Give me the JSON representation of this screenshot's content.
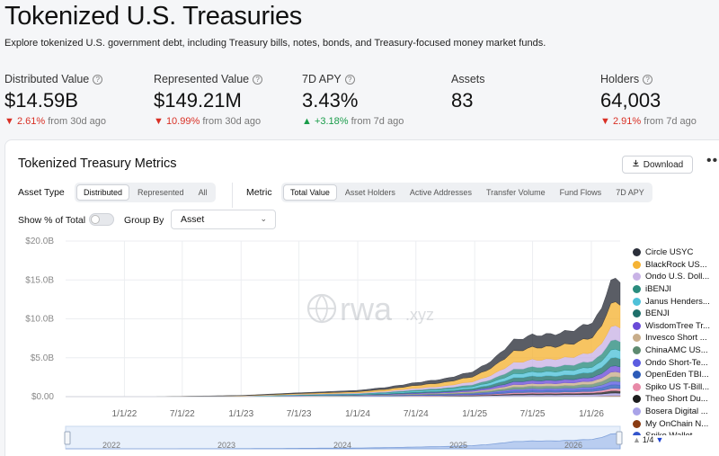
{
  "header": {
    "title": "Tokenized U.S. Treasuries",
    "subtitle": "Explore tokenized U.S. government debt, including Treasury bills, notes, bonds, and Treasury-focused money market funds."
  },
  "stats": [
    {
      "label": "Distributed Value",
      "value": "$14.59B",
      "change": "2.61%",
      "dir": "down",
      "since": "from 30d ago",
      "help": true
    },
    {
      "label": "Represented Value",
      "value": "$149.21M",
      "change": "10.99%",
      "dir": "down",
      "since": "from 30d ago",
      "help": true
    },
    {
      "label": "7D APY",
      "value": "3.43%",
      "change": "+3.18%",
      "dir": "up",
      "since": "from 7d ago",
      "help": true
    },
    {
      "label": "Assets",
      "value": "83",
      "change": "",
      "dir": "",
      "since": "",
      "help": false
    },
    {
      "label": "Holders",
      "value": "64,003",
      "change": "2.91%",
      "dir": "down",
      "since": "from 7d ago",
      "help": true
    }
  ],
  "card": {
    "title": "Tokenized Treasury Metrics",
    "download_label": "Download",
    "more_label": "•••",
    "asset_type_label": "Asset Type",
    "asset_type_options": [
      "Distributed",
      "Represented",
      "All"
    ],
    "asset_type_selected": "Distributed",
    "metric_label": "Metric",
    "metric_options": [
      "Total Value",
      "Asset Holders",
      "Active Addresses",
      "Transfer Volume",
      "Fund Flows",
      "7D APY"
    ],
    "metric_selected": "Total Value",
    "show_pct_label": "Show % of Total",
    "show_pct_on": false,
    "group_by_label": "Group By",
    "group_by_value": "Asset",
    "watermark": "rwa",
    "watermark_suffix": ".xyz"
  },
  "legend": {
    "items": [
      {
        "name": "Circle USYC",
        "color": "#2b2f3a"
      },
      {
        "name": "BlackRock US...",
        "color": "#f5b335"
      },
      {
        "name": "Ondo U.S. Doll...",
        "color": "#c9b3e6"
      },
      {
        "name": "iBENJI",
        "color": "#2a8c7e"
      },
      {
        "name": "Janus Henders...",
        "color": "#4fc1d9"
      },
      {
        "name": "BENJI",
        "color": "#1e6f6a"
      },
      {
        "name": "WisdomTree Tr...",
        "color": "#6a4bd8"
      },
      {
        "name": "Invesco Short ...",
        "color": "#c8ad8a"
      },
      {
        "name": "ChinaAMC US...",
        "color": "#5d8a70"
      },
      {
        "name": "Ondo Short-Te...",
        "color": "#5b5ce0"
      },
      {
        "name": "OpenEden TBI...",
        "color": "#2c5bb8"
      },
      {
        "name": "Spiko US T-Bill...",
        "color": "#e88aa8"
      },
      {
        "name": "Theo Short Du...",
        "color": "#1c1c1c"
      },
      {
        "name": "Bosera Digital ...",
        "color": "#a9a3e8"
      },
      {
        "name": "My OnChain N...",
        "color": "#8a3b12"
      },
      {
        "name": "Spiko Wallet...",
        "color": "#3355cc"
      }
    ],
    "page": "1/4"
  },
  "chart_data": {
    "type": "area",
    "stacked": true,
    "yticks": [
      "$20.0B",
      "$15.0B",
      "$10.0B",
      "$5.0B",
      "$0.00"
    ],
    "ylim": [
      0,
      20
    ],
    "yunit": "$B",
    "xticks": [
      "1/1/22",
      "7/1/22",
      "1/1/23",
      "7/1/23",
      "1/1/24",
      "7/1/24",
      "1/1/25",
      "7/1/25",
      "1/1/26"
    ],
    "x": [
      "2021-07-01",
      "2022-01-01",
      "2022-07-01",
      "2023-01-01",
      "2023-07-01",
      "2024-01-01",
      "2024-04-01",
      "2024-07-01",
      "2024-10-01",
      "2025-01-01",
      "2025-03-01",
      "2025-05-01",
      "2025-07-01",
      "2025-09-01",
      "2025-11-01",
      "2026-01-01",
      "2026-02-01",
      "2026-03-01",
      "2026-04-01"
    ],
    "total": [
      0.0,
      0.0,
      0.05,
      0.15,
      0.5,
      0.8,
      1.2,
      1.8,
      2.3,
      3.3,
      4.8,
      7.2,
      7.9,
      8.0,
      8.5,
      9.5,
      11.0,
      15.2,
      14.6
    ],
    "series_share": [
      0.2,
      0.2,
      0.12,
      0.08,
      0.07,
      0.07,
      0.05,
      0.04,
      0.04,
      0.03,
      0.03,
      0.02,
      0.02,
      0.02,
      0.01
    ],
    "grid": true,
    "legend_position": "right",
    "navigator_ticks": [
      "2022",
      "2023",
      "2024",
      "2025",
      "2026"
    ]
  }
}
